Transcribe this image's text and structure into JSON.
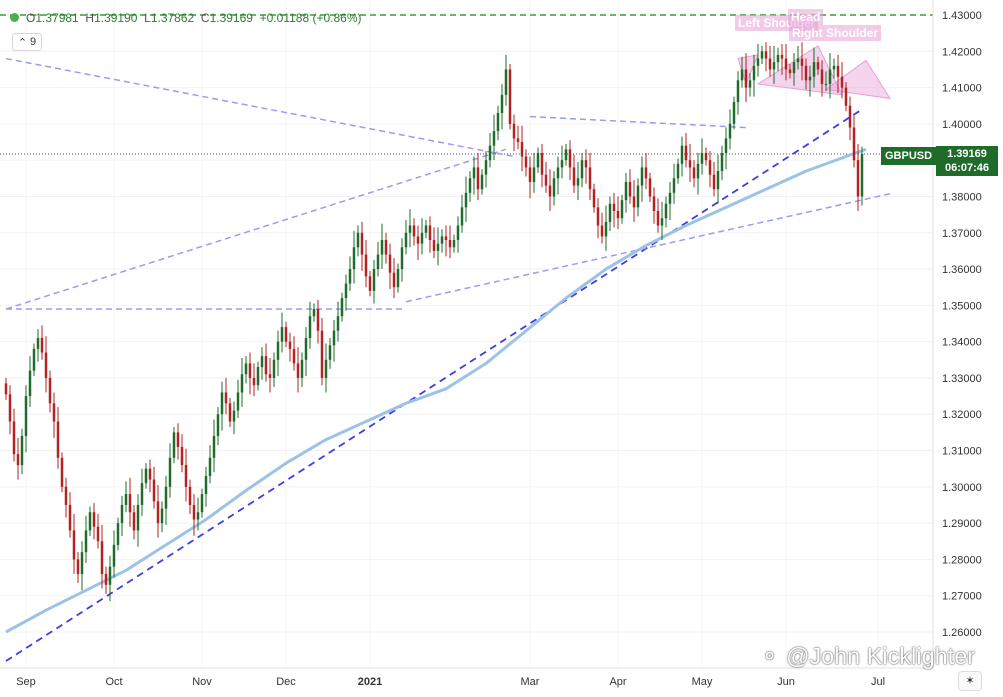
{
  "legend": {
    "open_label": "O",
    "open": "1.37981",
    "high_label": "H",
    "high": "1.39190",
    "low_label": "L",
    "low": "1.37862",
    "close_label": "C",
    "close": "1.39169",
    "change": "+0.01188 (+0.86%)"
  },
  "indicator_count": "9",
  "symbol": "GBPUSD",
  "last_price": "1.39169",
  "countdown": "06:07:46",
  "watermark": "@John Kicklighter",
  "colors": {
    "up": "#1e6b2a",
    "down": "#b22222",
    "moving_average": "#9cc3e6",
    "trendline_dark": "#3d3de0",
    "trendline_light": "#9b9bf0",
    "resistance": "#3a9a3a",
    "pattern": "#e8a0d7"
  },
  "annotations": [
    "Left Shoulder",
    "Head",
    "Right Shoulder"
  ],
  "chart_data": {
    "type": "candlestick",
    "title": "",
    "instrument": "GBPUSD",
    "ylim": [
      1.255,
      1.4325
    ],
    "y_ticks": [
      "1.26000",
      "1.27000",
      "1.28000",
      "1.29000",
      "1.30000",
      "1.31000",
      "1.32000",
      "1.33000",
      "1.34000",
      "1.35000",
      "1.36000",
      "1.37000",
      "1.38000",
      "1.39000",
      "1.40000",
      "1.41000",
      "1.42000",
      "1.43000"
    ],
    "x_ticks": [
      {
        "label": "Sep",
        "i": 5
      },
      {
        "label": "Oct",
        "i": 27
      },
      {
        "label": "Nov",
        "i": 49
      },
      {
        "label": "Dec",
        "i": 70
      },
      {
        "label": "2021",
        "i": 91
      },
      {
        "label": "Mar",
        "i": 131
      },
      {
        "label": "Apr",
        "i": 153
      },
      {
        "label": "May",
        "i": 174
      },
      {
        "label": "Jun",
        "i": 195
      },
      {
        "label": "Jul",
        "i": 218
      }
    ],
    "closes": [
      1.3255,
      1.318,
      1.309,
      1.306,
      1.314,
      1.325,
      1.332,
      1.338,
      1.341,
      1.337,
      1.33,
      1.323,
      1.318,
      1.308,
      1.3,
      1.295,
      1.288,
      1.28,
      1.276,
      1.282,
      1.288,
      1.293,
      1.289,
      1.285,
      1.276,
      1.273,
      1.278,
      1.284,
      1.29,
      1.295,
      1.298,
      1.293,
      1.288,
      1.295,
      1.301,
      1.305,
      1.302,
      1.296,
      1.29,
      1.294,
      1.3,
      1.308,
      1.315,
      1.311,
      1.306,
      1.3,
      1.295,
      1.291,
      1.293,
      1.298,
      1.303,
      1.308,
      1.314,
      1.32,
      1.326,
      1.323,
      1.318,
      1.321,
      1.326,
      1.331,
      1.334,
      1.33,
      1.328,
      1.333,
      1.336,
      1.331,
      1.33,
      1.335,
      1.34,
      1.344,
      1.34,
      1.338,
      1.334,
      1.33,
      1.335,
      1.341,
      1.347,
      1.349,
      1.343,
      1.33,
      1.335,
      1.339,
      1.343,
      1.347,
      1.352,
      1.356,
      1.36,
      1.366,
      1.37,
      1.364,
      1.358,
      1.354,
      1.36,
      1.364,
      1.368,
      1.364,
      1.359,
      1.355,
      1.36,
      1.366,
      1.37,
      1.372,
      1.369,
      1.367,
      1.37,
      1.372,
      1.368,
      1.365,
      1.367,
      1.369,
      1.368,
      1.366,
      1.368,
      1.372,
      1.377,
      1.381,
      1.385,
      1.388,
      1.382,
      1.386,
      1.39,
      1.394,
      1.398,
      1.403,
      1.408,
      1.415,
      1.4,
      1.396,
      1.395,
      1.391,
      1.388,
      1.384,
      1.388,
      1.392,
      1.386,
      1.383,
      1.38,
      1.385,
      1.388,
      1.39,
      1.393,
      1.388,
      1.383,
      1.385,
      1.39,
      1.388,
      1.382,
      1.377,
      1.372,
      1.369,
      1.373,
      1.378,
      1.376,
      1.374,
      1.379,
      1.384,
      1.38,
      1.377,
      1.383,
      1.388,
      1.385,
      1.38,
      1.376,
      1.372,
      1.374,
      1.378,
      1.381,
      1.385,
      1.389,
      1.394,
      1.39,
      1.388,
      1.385,
      1.389,
      1.392,
      1.39,
      1.386,
      1.382,
      1.387,
      1.392,
      1.396,
      1.4,
      1.406,
      1.412,
      1.415,
      1.41,
      1.412,
      1.416,
      1.418,
      1.42,
      1.418,
      1.415,
      1.417,
      1.419,
      1.418,
      1.415,
      1.414,
      1.417,
      1.418,
      1.416,
      1.412,
      1.413,
      1.417,
      1.415,
      1.411,
      1.411,
      1.415,
      1.416,
      1.413,
      1.41,
      1.405,
      1.399,
      1.39,
      1.38,
      1.3917
    ],
    "moving_average": [
      {
        "i": 0,
        "y": 1.26
      },
      {
        "i": 10,
        "y": 1.266
      },
      {
        "i": 20,
        "y": 1.2715
      },
      {
        "i": 30,
        "y": 1.277
      },
      {
        "i": 40,
        "y": 1.284
      },
      {
        "i": 50,
        "y": 1.291
      },
      {
        "i": 60,
        "y": 1.299
      },
      {
        "i": 70,
        "y": 1.3065
      },
      {
        "i": 80,
        "y": 1.313
      },
      {
        "i": 90,
        "y": 1.318
      },
      {
        "i": 100,
        "y": 1.323
      },
      {
        "i": 110,
        "y": 1.327
      },
      {
        "i": 120,
        "y": 1.334
      },
      {
        "i": 130,
        "y": 1.343
      },
      {
        "i": 140,
        "y": 1.352
      },
      {
        "i": 150,
        "y": 1.36
      },
      {
        "i": 160,
        "y": 1.3665
      },
      {
        "i": 170,
        "y": 1.372
      },
      {
        "i": 180,
        "y": 1.377
      },
      {
        "i": 190,
        "y": 1.382
      },
      {
        "i": 200,
        "y": 1.387
      },
      {
        "i": 210,
        "y": 1.391
      },
      {
        "i": 215,
        "y": 1.393
      }
    ],
    "trendlines": [
      {
        "style": "dark",
        "from": {
          "i": 0,
          "y": 1.252
        },
        "to": {
          "i": 214,
          "y": 1.404
        }
      },
      {
        "style": "light",
        "from": {
          "i": 0,
          "y": 1.418
        },
        "to": {
          "i": 127,
          "y": 1.391
        }
      },
      {
        "style": "light",
        "from": {
          "i": 0,
          "y": 1.349
        },
        "to": {
          "i": 125,
          "y": 1.393
        }
      },
      {
        "style": "light",
        "from": {
          "i": 0,
          "y": 1.349
        },
        "to": {
          "i": 100,
          "y": 1.349
        }
      },
      {
        "style": "light",
        "from": {
          "i": 100,
          "y": 1.351
        },
        "to": {
          "i": 222,
          "y": 1.381
        }
      },
      {
        "style": "light",
        "from": {
          "i": 131,
          "y": 1.402
        },
        "to": {
          "i": 185,
          "y": 1.399
        }
      }
    ],
    "resistance": 1.43,
    "last_price_line": 1.39169,
    "pattern": "Head and Shoulders"
  }
}
